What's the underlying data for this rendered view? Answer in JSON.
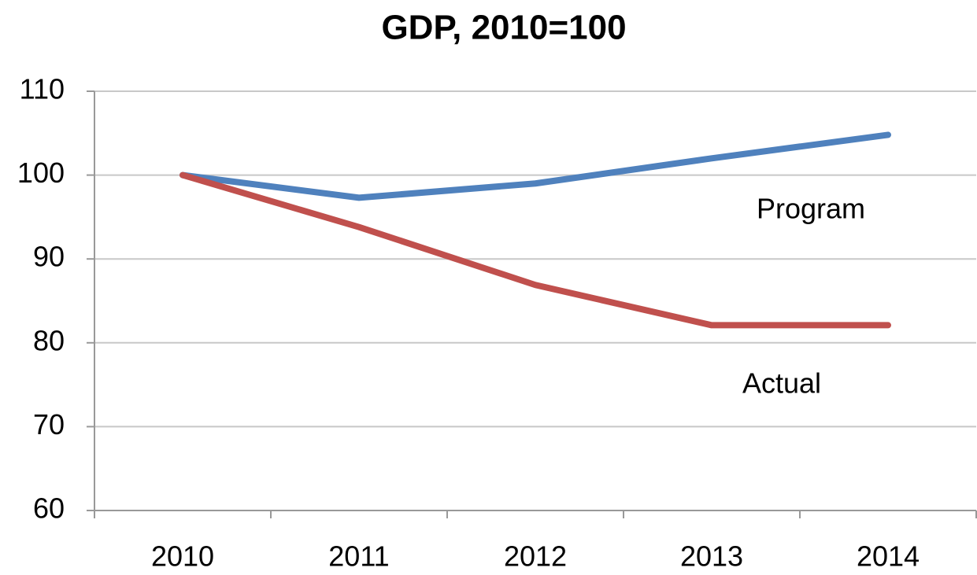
{
  "chart_data": {
    "type": "line",
    "title": "GDP, 2010=100",
    "categories": [
      "2010",
      "2011",
      "2012",
      "2013",
      "2014"
    ],
    "series": [
      {
        "name": "Program",
        "color": "#4f81bd",
        "values": [
          100,
          97.3,
          99.0,
          102.0,
          104.8
        ]
      },
      {
        "name": "Actual",
        "color": "#c0504d",
        "values": [
          100,
          93.8,
          86.9,
          82.1,
          82.1
        ]
      }
    ],
    "ylim": [
      60,
      110
    ],
    "yticks": [
      60,
      70,
      80,
      90,
      100,
      110
    ],
    "grid": true
  }
}
